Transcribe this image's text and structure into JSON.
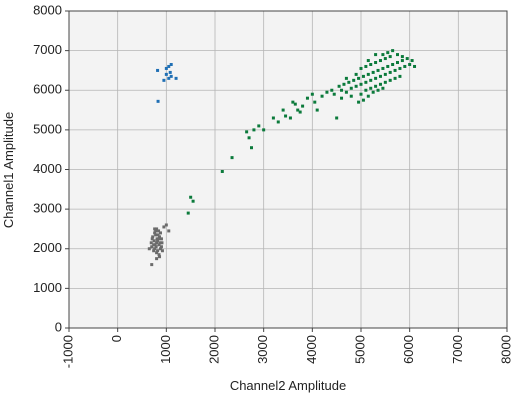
{
  "chart_data": {
    "type": "scatter",
    "x_label": "Channel2 Amplitude",
    "y_label": "Channel1 Amplitude",
    "xlim": [
      -1000,
      8000
    ],
    "ylim": [
      0,
      8000
    ],
    "xticks": [
      -1000,
      0,
      1000,
      2000,
      3000,
      4000,
      5000,
      6000,
      7000,
      8000
    ],
    "yticks": [
      0,
      1000,
      2000,
      3000,
      4000,
      5000,
      6000,
      7000,
      8000
    ],
    "grid": true,
    "series": [
      {
        "color": "#1f6fb4",
        "x": [
          820,
          1000,
          1050,
          1100,
          1000,
          1050,
          1100,
          1200,
          950,
          830,
          1080
        ],
        "y": [
          6500,
          6550,
          6600,
          6650,
          6400,
          6300,
          6350,
          6300,
          6250,
          5720,
          6450
        ]
      },
      {
        "color": "#6b6b6b",
        "x": [
          800,
          750,
          850,
          700,
          900,
          780,
          820,
          760,
          880,
          720,
          840,
          800,
          770,
          860,
          690,
          910,
          810,
          740,
          870,
          790,
          830,
          710,
          900,
          780,
          850,
          760,
          820,
          800,
          740,
          880,
          1000,
          1050,
          700,
          950,
          650,
          920,
          860,
          800,
          760,
          840
        ],
        "y": [
          2150,
          2200,
          2100,
          2050,
          2250,
          2350,
          1950,
          2400,
          2000,
          2300,
          2450,
          1900,
          2100,
          2300,
          2150,
          2150,
          2250,
          1950,
          2150,
          2050,
          2350,
          2250,
          2050,
          2450,
          1850,
          2000,
          2200,
          2500,
          2100,
          2400,
          2600,
          2450,
          1600,
          2550,
          2000,
          1950,
          1800,
          1750,
          2500,
          2250
        ]
      },
      {
        "color": "#0b7a3b",
        "x": [
          1500,
          1550,
          1450,
          2150,
          2350,
          2650,
          2700,
          2750,
          2800,
          2900,
          3000,
          3200,
          3300,
          3400,
          3450,
          3550,
          3650,
          3600,
          3700,
          3750,
          3800,
          3900,
          4000,
          4050,
          4100,
          4200,
          4300,
          4500,
          4400,
          4450,
          4550,
          4600,
          4650,
          4700,
          4750,
          4800,
          4850,
          4900,
          4950,
          5000,
          5050,
          5100,
          5150,
          5200,
          5250,
          5300,
          5350,
          5400,
          5450,
          5500,
          5550,
          5600,
          5650,
          5700,
          5750,
          5800,
          5850,
          5900,
          5950,
          6000,
          6050,
          4600,
          4700,
          4800,
          4900,
          5000,
          5100,
          5200,
          5300,
          5400,
          5500,
          5600,
          5700,
          5800,
          5000,
          5100,
          5200,
          5300,
          5400,
          5500,
          5250,
          5350,
          5450,
          5150,
          5050,
          4950,
          5550,
          5650,
          5750,
          5850,
          6100,
          5600,
          5450,
          5300,
          5150
        ],
        "y": [
          3300,
          3200,
          2900,
          3950,
          4300,
          4950,
          4800,
          4550,
          5000,
          5100,
          5000,
          5300,
          5200,
          5500,
          5350,
          5300,
          5650,
          5700,
          5500,
          5450,
          5600,
          5800,
          5900,
          5700,
          5500,
          5850,
          5950,
          5300,
          6000,
          5900,
          6100,
          6000,
          6150,
          5950,
          6200,
          6050,
          6250,
          6100,
          6300,
          6150,
          6350,
          6200,
          6400,
          6250,
          6450,
          6300,
          6500,
          6350,
          6550,
          6400,
          6600,
          6450,
          6650,
          6500,
          6700,
          6550,
          6750,
          6600,
          6800,
          6650,
          6750,
          5800,
          6300,
          5850,
          6400,
          5900,
          6000,
          6050,
          6100,
          6150,
          6200,
          6250,
          6300,
          6350,
          6550,
          6600,
          6650,
          6700,
          6750,
          6800,
          5950,
          6000,
          6050,
          5850,
          5750,
          5700,
          6950,
          7000,
          6900,
          6850,
          6600,
          6850,
          6900,
          6900,
          6750
        ]
      }
    ]
  }
}
